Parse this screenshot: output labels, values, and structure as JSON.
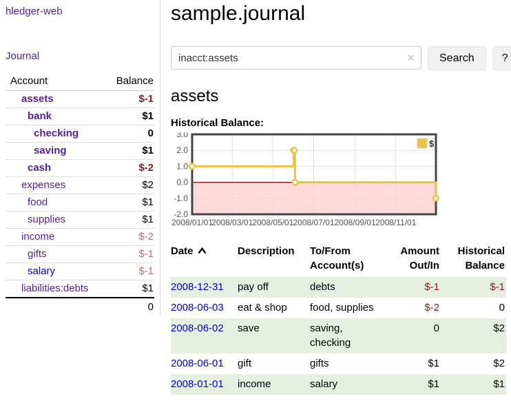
{
  "sidebar": {
    "app_title": "hledger-web",
    "journal_link": "Journal",
    "accounts_table": {
      "headers": {
        "account": "Account",
        "balance": "Balance"
      },
      "rows": [
        {
          "name": "assets",
          "depth": 0,
          "bold": true,
          "balance": "$-1",
          "balance_tone": "neg-strong",
          "link": "purple"
        },
        {
          "name": "bank",
          "depth": 1,
          "bold": true,
          "balance": "$1",
          "balance_tone": "pos",
          "link": "purple"
        },
        {
          "name": "checking",
          "depth": 2,
          "bold": true,
          "balance": "0",
          "balance_tone": "pos",
          "link": "purple"
        },
        {
          "name": "saving",
          "depth": 2,
          "bold": true,
          "balance": "$1",
          "balance_tone": "pos",
          "link": "purple"
        },
        {
          "name": "cash",
          "depth": 1,
          "bold": true,
          "balance": "$-2",
          "balance_tone": "neg-strong",
          "link": "purple"
        },
        {
          "name": "expenses",
          "depth": 0,
          "bold": false,
          "balance": "$2",
          "balance_tone": "pos",
          "link": "purple"
        },
        {
          "name": "food",
          "depth": 1,
          "bold": false,
          "balance": "$1",
          "balance_tone": "pos",
          "link": "purple"
        },
        {
          "name": "supplies",
          "depth": 1,
          "bold": false,
          "balance": "$1",
          "balance_tone": "pos",
          "link": "purple"
        },
        {
          "name": "income",
          "depth": 0,
          "bold": false,
          "balance": "$-2",
          "balance_tone": "neg-muted",
          "link": "purple"
        },
        {
          "name": "gifts",
          "depth": 1,
          "bold": false,
          "balance": "$-1",
          "balance_tone": "neg-muted",
          "link": "purple"
        },
        {
          "name": "salary",
          "depth": 1,
          "bold": false,
          "balance": "$-1",
          "balance_tone": "neg-muted",
          "link": "blue"
        },
        {
          "name": "liabilities:debts",
          "depth": 0,
          "bold": false,
          "balance": "$1",
          "balance_tone": "pos",
          "link": "purple"
        }
      ],
      "total": "0"
    }
  },
  "main": {
    "title": "sample.journal",
    "search": {
      "value": "inacct:assets",
      "clear_icon": "✕",
      "button_label": "Search",
      "help_label": "?"
    },
    "account_heading": "assets",
    "chart_label": "Historical Balance:"
  },
  "chart_data": {
    "type": "line",
    "step": true,
    "title": "Historical Balance",
    "series": [
      {
        "name": "$",
        "color": "#edc240",
        "points": [
          [
            "2008-01-01",
            1
          ],
          [
            "2008-06-01",
            2
          ],
          [
            "2008-06-02",
            2
          ],
          [
            "2008-06-03",
            0
          ],
          [
            "2008-12-31",
            -1
          ]
        ]
      }
    ],
    "xlim": [
      "2008-01-01",
      "2008-12-31"
    ],
    "ylim": [
      -2,
      3
    ],
    "x_tick_labels": [
      "2008/01/01",
      "2008/03/01",
      "2008/05/01",
      "2008/07/01",
      "2008/09/01",
      "2008/11/01"
    ],
    "y_tick_labels": [
      "3.0",
      "2.0",
      "1.0",
      "0.0",
      "-1.0",
      "-2.0"
    ],
    "y_ticks": [
      3,
      2,
      1,
      0,
      -1,
      -2
    ],
    "grid": true,
    "legend": {
      "label": "$",
      "position": "top-right"
    },
    "colors": {
      "line": "#edc240",
      "marker_fill": "#ffffff",
      "negative_region": "#ffdbdb",
      "zero_line": "#8b0000",
      "border": "#444444",
      "gridline": "#e0e0e0",
      "axis_text": "#545454"
    }
  },
  "transactions": {
    "headers": {
      "date": "Date",
      "description": "Description",
      "accounts": "To/From Account(s)",
      "amount": "Amount Out/In",
      "balance": "Historical Balance"
    },
    "sort": {
      "column": "date",
      "direction": "asc",
      "icon": "chevron-up"
    },
    "rows": [
      {
        "date": "2008-12-31",
        "description": "pay off",
        "accounts": "debts",
        "amount": "$-1",
        "amount_tone": "neg-strong",
        "balance": "$-1",
        "balance_tone": "neg-strong"
      },
      {
        "date": "2008-06-03",
        "description": "eat & shop",
        "accounts": "food, supplies",
        "amount": "$-2",
        "amount_tone": "neg-strong",
        "balance": "0",
        "balance_tone": "pos"
      },
      {
        "date": "2008-06-02",
        "description": "save",
        "accounts": "saving, checking",
        "amount": "0",
        "amount_tone": "pos",
        "balance": "$2",
        "balance_tone": "pos"
      },
      {
        "date": "2008-06-01",
        "description": "gift",
        "accounts": "gifts",
        "amount": "$1",
        "amount_tone": "pos",
        "balance": "$2",
        "balance_tone": "pos"
      },
      {
        "date": "2008-01-01",
        "description": "income",
        "accounts": "salary",
        "amount": "$1",
        "amount_tone": "pos",
        "balance": "$1",
        "balance_tone": "pos"
      }
    ]
  }
}
